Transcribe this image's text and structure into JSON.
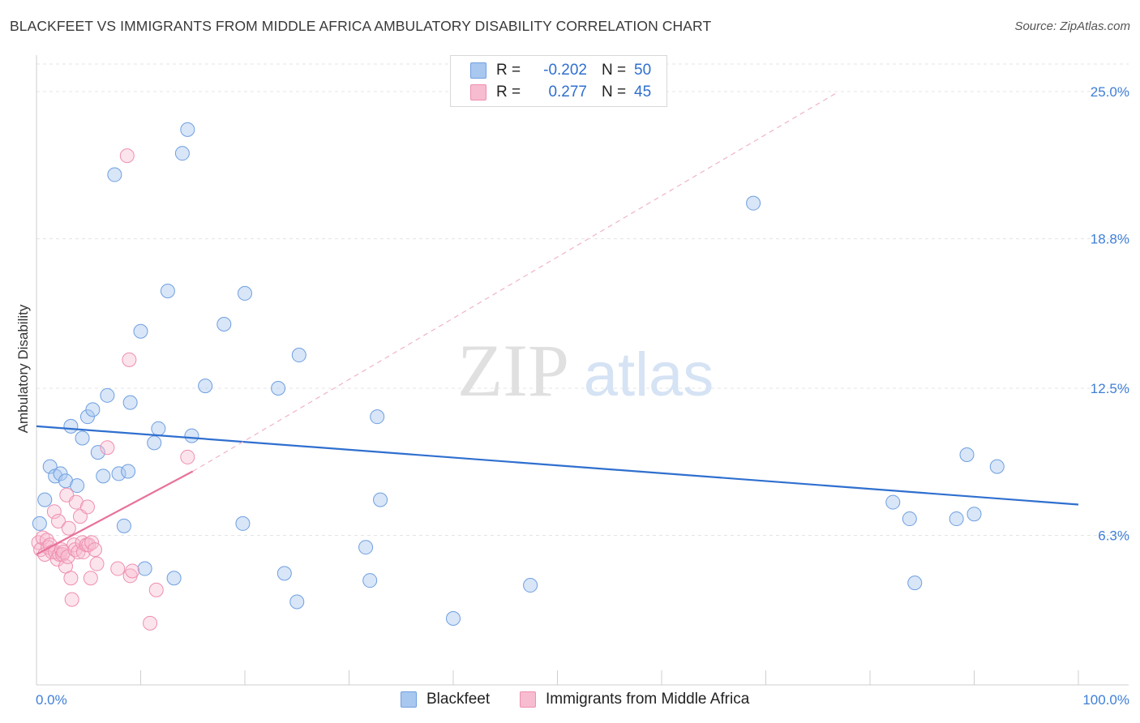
{
  "title": "BLACKFEET VS IMMIGRANTS FROM MIDDLE AFRICA AMBULATORY DISABILITY CORRELATION CHART",
  "source": "Source: ZipAtlas.com",
  "watermark": {
    "zip": "ZIP",
    "atlas": "atlas"
  },
  "legend": {
    "rows": [
      {
        "r_label": "R =",
        "r_value": "-0.202",
        "n_label": "N =",
        "n_value": "50",
        "color": "#a9c8f0",
        "border": "#6f9fe0"
      },
      {
        "r_label": "R =",
        "r_value": "0.277",
        "n_label": "N =",
        "n_value": "45",
        "color": "#f7bcd0",
        "border": "#ee8fb0"
      }
    ]
  },
  "bottom_legend": [
    {
      "label": "Blackfeet",
      "color": "#a9c8f0",
      "border": "#6f9fe0"
    },
    {
      "label": "Immigrants from Middle Africa",
      "color": "#f7bcd0",
      "border": "#ee8fb0"
    }
  ],
  "chart_data": {
    "type": "scatter",
    "title": "BLACKFEET VS IMMIGRANTS FROM MIDDLE AFRICA AMBULATORY DISABILITY CORRELATION CHART",
    "xlabel": "",
    "ylabel": "Ambulatory Disability",
    "xlim": [
      0,
      100
    ],
    "ylim": [
      0,
      26.3
    ],
    "x_tick_labels": [
      "0.0%",
      "100.0%"
    ],
    "y_ticks": [
      6.3,
      12.5,
      18.8,
      25.0
    ],
    "y_tick_labels": [
      "6.3%",
      "12.5%",
      "18.8%",
      "25.0%"
    ],
    "grid": true,
    "colors": {
      "blue": "#2f6fcf",
      "pink": "#e8729a",
      "axis_text": "#3f7fd6"
    },
    "series": [
      {
        "name": "Blackfeet",
        "r": -0.202,
        "n": 50,
        "trend": {
          "x0": 0,
          "y0": 10.9,
          "x1": 100,
          "y1": 7.6
        },
        "points": [
          [
            0.3,
            6.8
          ],
          [
            0.8,
            7.8
          ],
          [
            1.3,
            9.2
          ],
          [
            1.8,
            8.8
          ],
          [
            2.3,
            8.9
          ],
          [
            2.8,
            8.6
          ],
          [
            3.3,
            10.9
          ],
          [
            3.9,
            8.4
          ],
          [
            4.4,
            10.4
          ],
          [
            4.9,
            11.3
          ],
          [
            5.4,
            11.6
          ],
          [
            5.9,
            9.8
          ],
          [
            6.4,
            8.8
          ],
          [
            6.8,
            12.2
          ],
          [
            7.5,
            21.5
          ],
          [
            7.9,
            8.9
          ],
          [
            8.4,
            6.7
          ],
          [
            8.8,
            9.0
          ],
          [
            9.0,
            11.9
          ],
          [
            10.0,
            14.9
          ],
          [
            10.4,
            4.9
          ],
          [
            11.3,
            10.2
          ],
          [
            11.7,
            10.8
          ],
          [
            12.6,
            16.6
          ],
          [
            13.2,
            4.5
          ],
          [
            14.0,
            22.4
          ],
          [
            14.5,
            23.4
          ],
          [
            14.9,
            10.5
          ],
          [
            16.2,
            12.6
          ],
          [
            18.0,
            15.2
          ],
          [
            19.8,
            6.8
          ],
          [
            20.0,
            16.5
          ],
          [
            23.2,
            12.5
          ],
          [
            23.8,
            4.7
          ],
          [
            25.0,
            3.5
          ],
          [
            25.2,
            13.9
          ],
          [
            31.6,
            5.8
          ],
          [
            32.0,
            4.4
          ],
          [
            32.7,
            11.3
          ],
          [
            33.0,
            7.8
          ],
          [
            40.0,
            2.8
          ],
          [
            47.4,
            4.2
          ],
          [
            68.8,
            20.3
          ],
          [
            82.2,
            7.7
          ],
          [
            83.8,
            7.0
          ],
          [
            84.3,
            4.3
          ],
          [
            88.3,
            7.0
          ],
          [
            89.3,
            9.7
          ],
          [
            90.0,
            7.2
          ],
          [
            92.2,
            9.2
          ]
        ]
      },
      {
        "name": "Immigrants from Middle Africa",
        "r": 0.277,
        "n": 45,
        "trend": {
          "x0": 0,
          "y0": 5.5,
          "x1": 15,
          "y1": 9.0
        },
        "trend_ext": {
          "x0": 15,
          "y0": 9.0,
          "x1": 77,
          "y1": 25.0
        },
        "points": [
          [
            0.2,
            6.0
          ],
          [
            0.4,
            5.7
          ],
          [
            0.6,
            6.2
          ],
          [
            0.8,
            5.5
          ],
          [
            1.0,
            6.1
          ],
          [
            1.1,
            5.8
          ],
          [
            1.3,
            5.9
          ],
          [
            1.5,
            5.6
          ],
          [
            1.7,
            7.3
          ],
          [
            1.8,
            5.6
          ],
          [
            2.0,
            5.3
          ],
          [
            2.1,
            6.9
          ],
          [
            2.2,
            5.5
          ],
          [
            2.4,
            5.7
          ],
          [
            2.5,
            5.5
          ],
          [
            2.6,
            5.6
          ],
          [
            2.8,
            5.0
          ],
          [
            2.9,
            8.0
          ],
          [
            3.0,
            5.4
          ],
          [
            3.1,
            6.6
          ],
          [
            3.3,
            4.5
          ],
          [
            3.4,
            3.6
          ],
          [
            3.6,
            5.9
          ],
          [
            3.7,
            5.7
          ],
          [
            3.8,
            7.7
          ],
          [
            4.0,
            5.6
          ],
          [
            4.2,
            7.1
          ],
          [
            4.4,
            6.0
          ],
          [
            4.5,
            5.6
          ],
          [
            4.8,
            5.9
          ],
          [
            4.9,
            7.5
          ],
          [
            5.0,
            5.9
          ],
          [
            5.2,
            4.5
          ],
          [
            5.3,
            6.0
          ],
          [
            5.6,
            5.7
          ],
          [
            5.8,
            5.1
          ],
          [
            6.8,
            10.0
          ],
          [
            7.8,
            4.9
          ],
          [
            8.7,
            22.3
          ],
          [
            8.9,
            13.7
          ],
          [
            9.0,
            4.6
          ],
          [
            9.2,
            4.8
          ],
          [
            10.9,
            2.6
          ],
          [
            11.5,
            4.0
          ],
          [
            14.5,
            9.6
          ]
        ]
      }
    ]
  }
}
